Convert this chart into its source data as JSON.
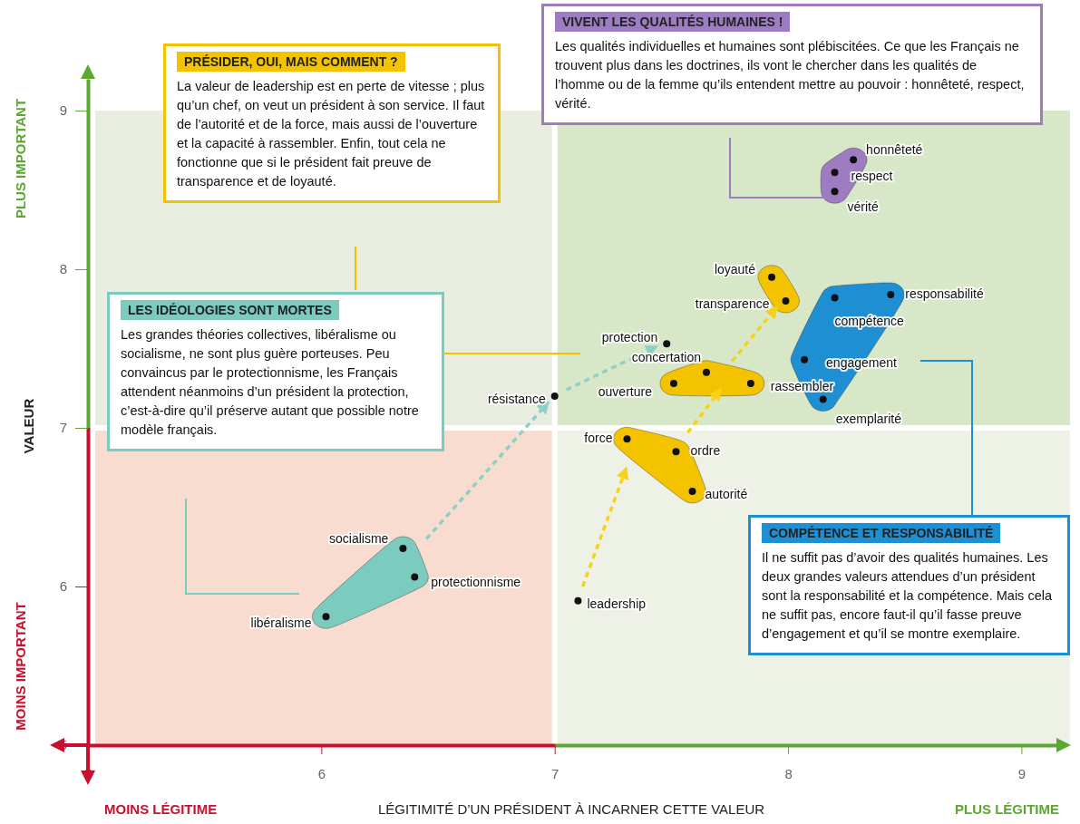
{
  "chart_data": {
    "type": "scatter",
    "xlabel": "LÉGITIMITÉ D’UN PRÉSIDENT À INCARNER CETTE VALEUR",
    "ylabel": "VALEUR",
    "xlim": [
      5,
      9.15
    ],
    "ylim": [
      5,
      9.2
    ],
    "xticks": [
      5,
      6,
      7,
      8,
      9
    ],
    "yticks": [
      5,
      6,
      7,
      8,
      9
    ],
    "marker": "circle",
    "series": [
      {
        "color": "#111111",
        "x": [
          8.28,
          8.2,
          8.2
        ],
        "values": [
          8.69,
          8.61,
          8.49
        ]
      },
      {
        "color": "#111111",
        "x": [
          7.93,
          7.99
        ],
        "values": [
          7.95,
          7.8
        ]
      },
      {
        "color": "#111111",
        "x": [
          8.44,
          8.2,
          8.07,
          8.15
        ],
        "values": [
          7.84,
          7.82,
          7.43,
          7.18
        ]
      },
      {
        "color": "#111111",
        "x": [
          7.65,
          7.51,
          7.84
        ],
        "values": [
          7.35,
          7.28,
          7.28
        ]
      },
      {
        "color": "#111111",
        "x": [
          7.31,
          7.52,
          7.59
        ],
        "values": [
          6.93,
          6.85,
          6.6
        ]
      },
      {
        "color": "#111111",
        "x": [
          6.35,
          6.4,
          6.02
        ],
        "values": [
          6.24,
          6.06,
          5.81
        ]
      },
      {
        "color": "#111111",
        "x": [
          7.48,
          7.0,
          7.1
        ],
        "values": [
          7.53,
          7.2,
          5.91
        ]
      }
    ],
    "annotations": [
      "PLUS IMPORTANT",
      "MOINS IMPORTANT",
      "MOINS LÉGITIME",
      "PLUS LÉGITIME",
      "PRÉSIDER, OUI, MAIS COMMENT ?",
      "La valeur de leadership est en perte de vitesse ; plus qu’un chef, on veut un président à son service. Il faut de l’autorité et de la force, mais aussi de l’ouverture et la capacité à rassembler. Enfin, tout cela ne fonctionne que si le président fait preuve de transparence et de loyauté.",
      "VIVENT LES QUALITÉS HUMAINES !",
      "Les qualités individuelles et humaines sont plébiscitées. Ce que les Français ne trouvent plus dans les doctrines, ils vont le chercher dans les qualités de l’homme ou de la femme qu’ils entendent mettre au pouvoir : honnêteté, respect, vérité.",
      "LES IDÉOLOGIES SONT MORTES",
      "Les grandes théories collectives, libéralisme ou socialisme, ne sont plus guère porteuses. Peu convaincus par le protectionnisme, les Français attendent néanmoins d’un président la protection, c’est-à-dire qu’il préserve autant que possible notre modèle français.",
      "COMPÉTENCE ET RESPONSABILITÉ",
      "Il ne suffit pas d’avoir des qualités humaines. Les deux grandes valeurs attendues d’un président sont la responsabilité et la compétence. Mais cela ne suffit pas, encore faut-il qu’il fasse preuve d’engagement et qu’il se montre exemplaire.",
      {
        "text": "honnêteté",
        "x": 8.28,
        "y": 8.69
      },
      {
        "text": "respect",
        "x": 8.2,
        "y": 8.61
      },
      {
        "text": "vérité",
        "x": 8.2,
        "y": 8.49
      },
      {
        "text": "loyauté",
        "x": 7.93,
        "y": 7.95
      },
      {
        "text": "transparence",
        "x": 7.99,
        "y": 7.8
      },
      {
        "text": "responsabilité",
        "x": 8.44,
        "y": 7.84
      },
      {
        "text": "compétence",
        "x": 8.2,
        "y": 7.82
      },
      {
        "text": "engagement",
        "x": 8.07,
        "y": 7.43
      },
      {
        "text": "exemplarité",
        "x": 8.15,
        "y": 7.18
      },
      {
        "text": "concertation",
        "x": 7.65,
        "y": 7.35
      },
      {
        "text": "ouverture",
        "x": 7.51,
        "y": 7.28
      },
      {
        "text": "rassembler",
        "x": 7.84,
        "y": 7.28
      },
      {
        "text": "force",
        "x": 7.31,
        "y": 6.93
      },
      {
        "text": "ordre",
        "x": 7.52,
        "y": 6.85
      },
      {
        "text": "autorité",
        "x": 7.59,
        "y": 6.6
      },
      {
        "text": "socialisme",
        "x": 6.35,
        "y": 6.24
      },
      {
        "text": "protectionnisme",
        "x": 6.4,
        "y": 6.06
      },
      {
        "text": "libéralisme",
        "x": 6.02,
        "y": 5.81
      },
      {
        "text": "protection",
        "x": 7.48,
        "y": 7.53
      },
      {
        "text": "résistance",
        "x": 7.0,
        "y": 7.2
      },
      {
        "text": "leadership",
        "x": 7.1,
        "y": 5.91
      }
    ]
  }
}
